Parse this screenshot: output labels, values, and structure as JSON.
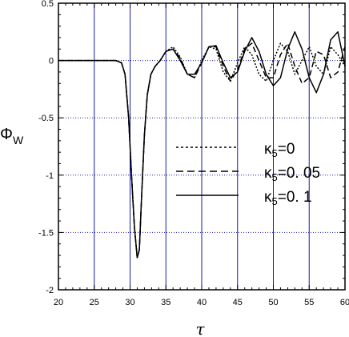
{
  "chart_data": {
    "type": "line",
    "xlabel": "τ",
    "ylabel": {
      "main": "Φ",
      "sub": "W"
    },
    "xlim": [
      20,
      60
    ],
    "ylim": [
      -2,
      0.5
    ],
    "xticks": [
      "20",
      "25",
      "30",
      "35",
      "40",
      "45",
      "50",
      "55",
      "60"
    ],
    "yticks": [
      "0.5",
      "0",
      "-0.5",
      "-1",
      "-1.5",
      "-2"
    ],
    "grid": true,
    "legend_position": "center-right",
    "series": [
      {
        "name": "κ5=0",
        "legend_parts": {
          "greek": "κ",
          "sub": "5",
          "rest": "=0"
        },
        "style": "dotted",
        "x": [
          20,
          28,
          28.8,
          29.3,
          29.8,
          30.2,
          30.6,
          31.0,
          31.3,
          31.6,
          32.0,
          32.4,
          32.9,
          33.5,
          34.2,
          35.0,
          36.0,
          37.0,
          38.0,
          39.0,
          40.0,
          41.0,
          42.0,
          43.0,
          44.0,
          45.0,
          46.0,
          47.0,
          48.0,
          49.0,
          50.0,
          51.0,
          52.0,
          53.0,
          54.0,
          55.0,
          56.0,
          57.0,
          58.0,
          59.0,
          60.0
        ],
        "y": [
          0,
          0,
          -0.02,
          -0.12,
          -0.5,
          -1.0,
          -1.45,
          -1.72,
          -1.65,
          -1.2,
          -0.65,
          -0.3,
          -0.12,
          -0.05,
          0.0,
          0.08,
          0.12,
          0.03,
          -0.12,
          -0.15,
          0.0,
          0.12,
          0.1,
          -0.1,
          -0.18,
          -0.02,
          0.12,
          0.05,
          -0.12,
          -0.18,
          0.0,
          0.15,
          0.08,
          -0.12,
          0.0,
          0.12,
          -0.05,
          -0.12,
          0.12,
          0.05,
          -0.05
        ]
      },
      {
        "name": "κ5=0. 05",
        "legend_parts": {
          "greek": "κ",
          "sub": "5",
          "rest": "=0. 05"
        },
        "style": "dashed",
        "x": [
          20,
          28,
          28.8,
          29.3,
          29.8,
          30.2,
          30.6,
          31.0,
          31.3,
          31.6,
          32.0,
          32.4,
          32.9,
          33.5,
          34.2,
          35.0,
          36.0,
          37.0,
          38.0,
          39.0,
          40.0,
          41.0,
          42.0,
          43.0,
          44.0,
          45.0,
          46.0,
          47.0,
          48.0,
          49.0,
          50.0,
          51.0,
          52.0,
          53.0,
          54.0,
          55.0,
          56.0,
          57.0,
          58.0,
          59.0,
          60.0
        ],
        "y": [
          0,
          0,
          -0.02,
          -0.12,
          -0.5,
          -1.0,
          -1.45,
          -1.72,
          -1.65,
          -1.2,
          -0.65,
          -0.3,
          -0.12,
          -0.05,
          0.0,
          0.08,
          0.1,
          0.02,
          -0.12,
          -0.15,
          -0.02,
          0.12,
          0.12,
          -0.05,
          -0.18,
          -0.08,
          0.1,
          0.15,
          0.0,
          -0.15,
          -0.15,
          0.05,
          0.15,
          -0.05,
          -0.2,
          -0.15,
          0.08,
          0.05,
          -0.15,
          -0.1,
          0.12
        ]
      },
      {
        "name": "κ5=0. 1",
        "legend_parts": {
          "greek": "κ",
          "sub": "5",
          "rest": "=0. 1"
        },
        "style": "solid",
        "x": [
          20,
          28,
          28.8,
          29.3,
          29.8,
          30.2,
          30.6,
          31.0,
          31.3,
          31.6,
          32.0,
          32.4,
          32.9,
          33.5,
          34.2,
          35.0,
          36.0,
          37.0,
          38.0,
          39.0,
          40.0,
          41.0,
          42.0,
          43.0,
          44.0,
          45.0,
          46.0,
          47.0,
          48.0,
          49.0,
          50.0,
          51.0,
          52.0,
          53.0,
          54.0,
          55.0,
          56.0,
          57.0,
          58.0,
          59.0,
          60.0
        ],
        "y": [
          0,
          0,
          -0.02,
          -0.12,
          -0.5,
          -1.0,
          -1.45,
          -1.72,
          -1.65,
          -1.2,
          -0.65,
          -0.3,
          -0.12,
          -0.05,
          0.0,
          0.08,
          0.1,
          0.0,
          -0.12,
          -0.12,
          -0.02,
          0.12,
          0.13,
          -0.02,
          -0.15,
          -0.1,
          0.08,
          0.2,
          0.08,
          -0.12,
          -0.22,
          -0.15,
          0.1,
          0.25,
          0.1,
          -0.15,
          -0.28,
          -0.12,
          0.18,
          0.25,
          -0.05
        ]
      }
    ]
  }
}
